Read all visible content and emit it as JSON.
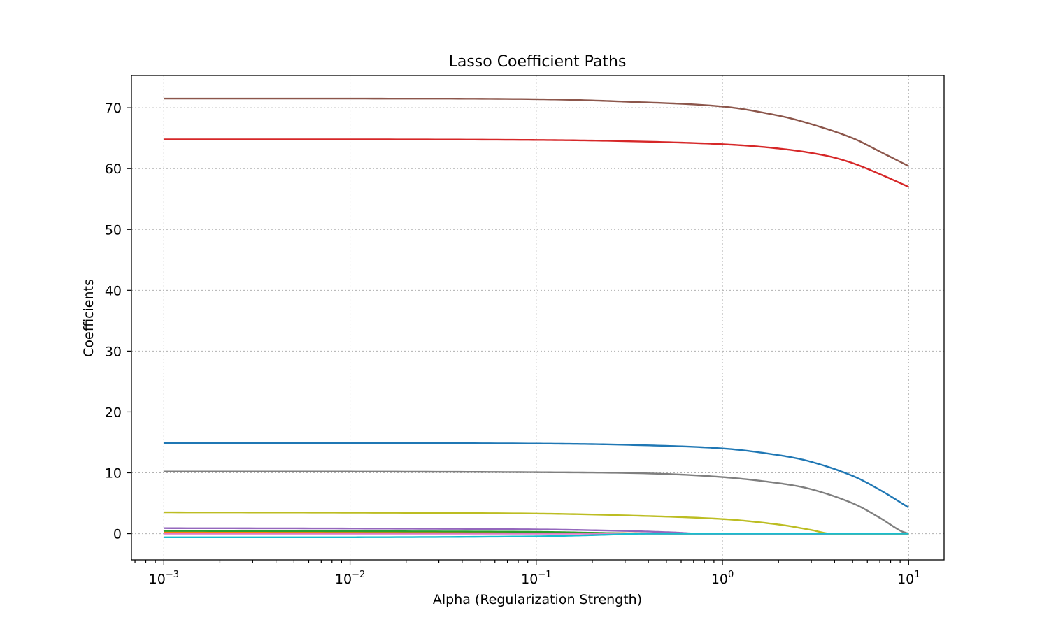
{
  "chart_data": {
    "type": "line",
    "title": "Lasso Coefficient Paths",
    "xlabel": "Alpha (Regularization Strength)",
    "ylabel": "Coefficients",
    "xscale": "log",
    "xlim": [
      0.00067,
      15.5
    ],
    "ylim": [
      -4.3,
      75.3
    ],
    "grid": true,
    "xticks": [
      {
        "value": 0.001,
        "base": "10",
        "exp": "−3"
      },
      {
        "value": 0.01,
        "base": "10",
        "exp": "−2"
      },
      {
        "value": 0.1,
        "base": "10",
        "exp": "−1"
      },
      {
        "value": 1,
        "base": "10",
        "exp": "0"
      },
      {
        "value": 10,
        "base": "10",
        "exp": "1"
      }
    ],
    "yticks": [
      0,
      10,
      20,
      30,
      40,
      50,
      60,
      70
    ],
    "series": [
      {
        "color": "#1f77b4",
        "x": [
          0.001,
          0.01,
          0.1,
          0.3,
          1,
          2,
          3,
          5,
          7,
          10
        ],
        "y": [
          14.9,
          14.9,
          14.8,
          14.6,
          14.0,
          12.9,
          11.8,
          9.5,
          7.2,
          4.3
        ]
      },
      {
        "color": "#ff7f0e",
        "x": [
          0.001,
          0.01,
          0.1,
          0.3,
          0.6,
          10
        ],
        "y": [
          0.2,
          0.2,
          0.15,
          0.08,
          0.0,
          0.0
        ]
      },
      {
        "color": "#2ca02c",
        "x": [
          0.001,
          0.01,
          0.1,
          0.2,
          0.4,
          10
        ],
        "y": [
          0.45,
          0.4,
          0.3,
          0.15,
          0.0,
          0.0
        ]
      },
      {
        "color": "#d62728",
        "x": [
          0.001,
          0.01,
          0.1,
          0.3,
          1,
          2,
          3.5,
          5,
          7,
          10
        ],
        "y": [
          64.8,
          64.8,
          64.7,
          64.5,
          64.0,
          63.3,
          62.2,
          60.9,
          59.1,
          57.0
        ]
      },
      {
        "color": "#9467bd",
        "x": [
          0.001,
          0.01,
          0.1,
          0.3,
          0.55,
          0.75,
          10
        ],
        "y": [
          0.9,
          0.85,
          0.7,
          0.45,
          0.2,
          0.0,
          0.0
        ]
      },
      {
        "color": "#8c564b",
        "x": [
          0.001,
          0.01,
          0.1,
          0.3,
          1,
          2,
          3,
          5,
          7,
          10
        ],
        "y": [
          71.5,
          71.5,
          71.4,
          71.0,
          70.2,
          68.7,
          67.3,
          65.0,
          62.8,
          60.4
        ]
      },
      {
        "color": "#e377c2",
        "x": [
          0.001,
          0.01,
          0.1,
          10
        ],
        "y": [
          0.0,
          0.0,
          0.0,
          0.0
        ]
      },
      {
        "color": "#7f7f7f",
        "x": [
          0.001,
          0.01,
          0.1,
          0.4,
          1,
          2,
          3,
          5,
          7,
          9,
          10
        ],
        "y": [
          10.2,
          10.2,
          10.1,
          9.9,
          9.3,
          8.3,
          7.3,
          5.0,
          2.6,
          0.5,
          0.0
        ]
      },
      {
        "color": "#bcbd22",
        "x": [
          0.001,
          0.01,
          0.1,
          0.3,
          1,
          2,
          3,
          3.8,
          10
        ],
        "y": [
          3.5,
          3.45,
          3.3,
          3.0,
          2.4,
          1.5,
          0.6,
          0.0,
          0.0
        ]
      },
      {
        "color": "#17becf",
        "x": [
          0.001,
          0.01,
          0.1,
          0.2,
          0.4,
          10
        ],
        "y": [
          -0.6,
          -0.6,
          -0.45,
          -0.25,
          0.0,
          0.0
        ]
      }
    ]
  }
}
